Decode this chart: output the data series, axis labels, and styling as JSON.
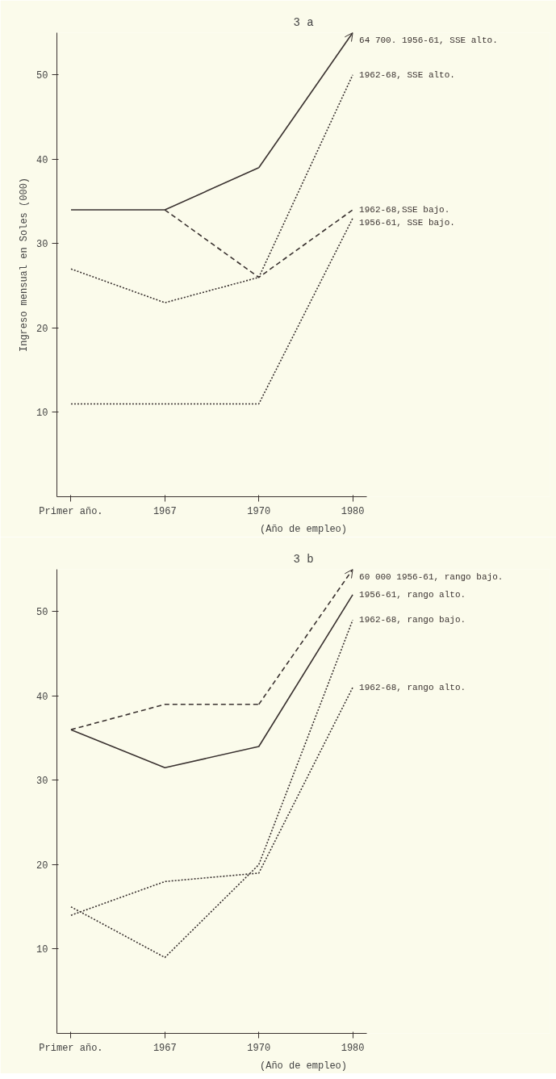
{
  "chart_data": [
    {
      "type": "line",
      "title": "3 a",
      "xlabel": "(Año de empleo)",
      "ylabel": "Ingreso mensual en Soles (000)",
      "categories": [
        "Primer año.",
        "1967",
        "1970",
        "1980"
      ],
      "ylim": [
        0,
        55
      ],
      "yticks": [
        10,
        20,
        30,
        40,
        50
      ],
      "grid": false,
      "series": [
        {
          "color": "#3a3230",
          "line_style": "solid",
          "values": [
            34,
            34,
            39,
            null
          ]
        },
        {
          "name": "1962-68, SSE alto.",
          "color": "#3a3230",
          "line_style": "dotted",
          "values": [
            27,
            23,
            26,
            50
          ]
        },
        {
          "name": "1962-68,SSE bajo.",
          "color": "#3a3230",
          "line_style": "dashed",
          "values": [
            null,
            34,
            26,
            34
          ]
        },
        {
          "name": "1956-61, SSE bajo.",
          "color": "#3a3230",
          "line_style": "dotted",
          "values": [
            11,
            11,
            11,
            33
          ]
        }
      ],
      "annotations": [
        "64 700. 1956-61, SSE alto."
      ]
    },
    {
      "type": "line",
      "title": "3 b",
      "xlabel": "(Año de empleo)",
      "categories": [
        "Primer año.",
        "1967",
        "1970",
        "1980"
      ],
      "ylim": [
        0,
        55
      ],
      "yticks": [
        10,
        20,
        30,
        40,
        50
      ],
      "grid": false,
      "series": [
        {
          "color": "#3a3230",
          "line_style": "dashed",
          "values": [
            36,
            39,
            39,
            null
          ]
        },
        {
          "name": "1956-61, rango alto.",
          "color": "#3a3230",
          "line_style": "solid",
          "values": [
            36,
            31.5,
            34,
            52
          ]
        },
        {
          "name": "1962-68, rango bajo.",
          "color": "#3a3230",
          "line_style": "dotted",
          "values": [
            15,
            9,
            20,
            49
          ]
        },
        {
          "name": "1962-68, rango alto.",
          "color": "#3a3230",
          "line_style": "dotted",
          "values": [
            14,
            18,
            19,
            41
          ]
        }
      ],
      "annotations": [
        "60 000 1956-61, rango bajo."
      ]
    }
  ]
}
